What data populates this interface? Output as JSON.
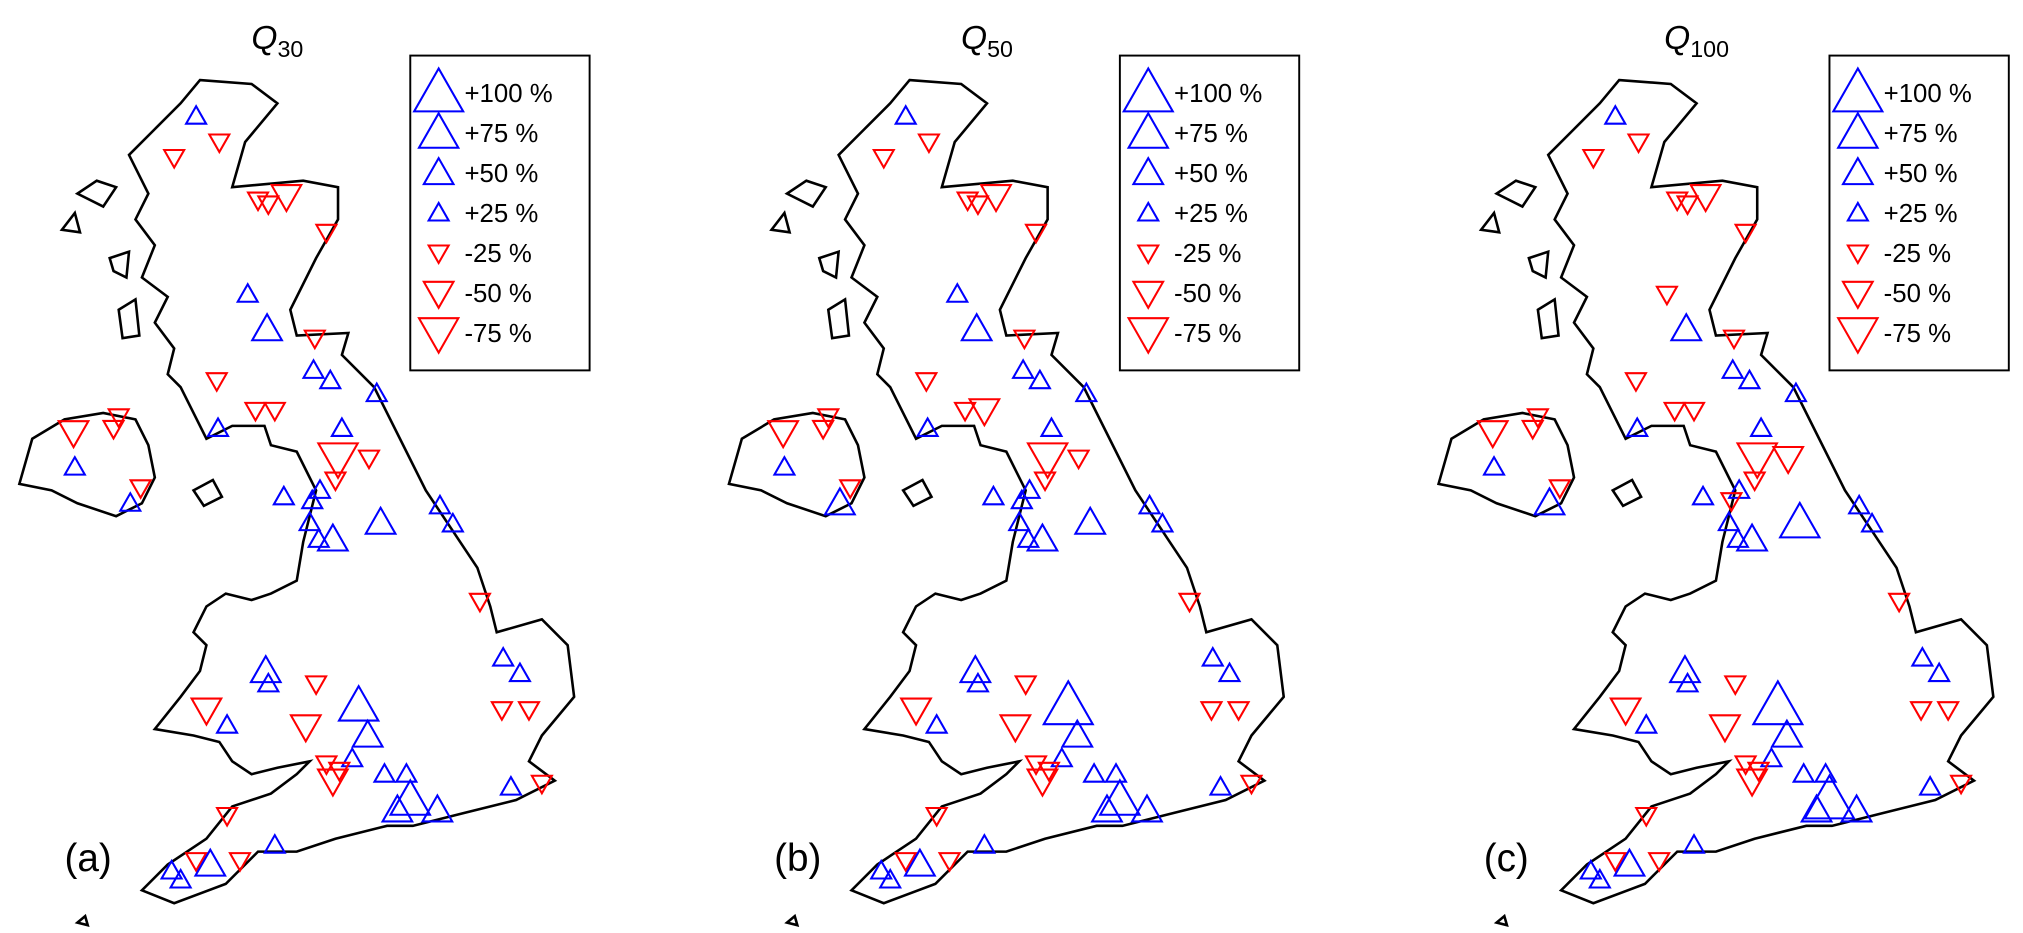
{
  "colors": {
    "increase": "#0000ff",
    "decrease": "#ff0000",
    "outline": "#000000"
  },
  "panels": [
    {
      "title": {
        "symbol": "Q",
        "subscript": "30"
      },
      "label": "(a)",
      "legend": [
        {
          "value": 100,
          "label": "+100 %"
        },
        {
          "value": 75,
          "label": "+75 %"
        },
        {
          "value": 50,
          "label": "+50 %"
        },
        {
          "value": 25,
          "label": "+25 %"
        },
        {
          "value": -25,
          "label": "-25 %"
        },
        {
          "value": -50,
          "label": "-50 %"
        },
        {
          "value": -75,
          "label": "-75 %"
        }
      ]
    },
    {
      "title": {
        "symbol": "Q",
        "subscript": "50"
      },
      "label": "(b)",
      "legend": [
        {
          "value": 100,
          "label": "+100 %"
        },
        {
          "value": 75,
          "label": "+75 %"
        },
        {
          "value": 50,
          "label": "+50 %"
        },
        {
          "value": 25,
          "label": "+25 %"
        },
        {
          "value": -25,
          "label": "-25 %"
        },
        {
          "value": -50,
          "label": "-50 %"
        },
        {
          "value": -75,
          "label": "-75 %"
        }
      ]
    },
    {
      "title": {
        "symbol": "Q",
        "subscript": "100"
      },
      "label": "(c)",
      "legend": [
        {
          "value": 100,
          "label": "+100 %"
        },
        {
          "value": 75,
          "label": "+75 %"
        },
        {
          "value": 50,
          "label": "+50 %"
        },
        {
          "value": 25,
          "label": "+25 %"
        },
        {
          "value": -25,
          "label": "-25 %"
        },
        {
          "value": -50,
          "label": "-50 %"
        },
        {
          "value": -75,
          "label": "-75 %"
        }
      ]
    }
  ]
}
